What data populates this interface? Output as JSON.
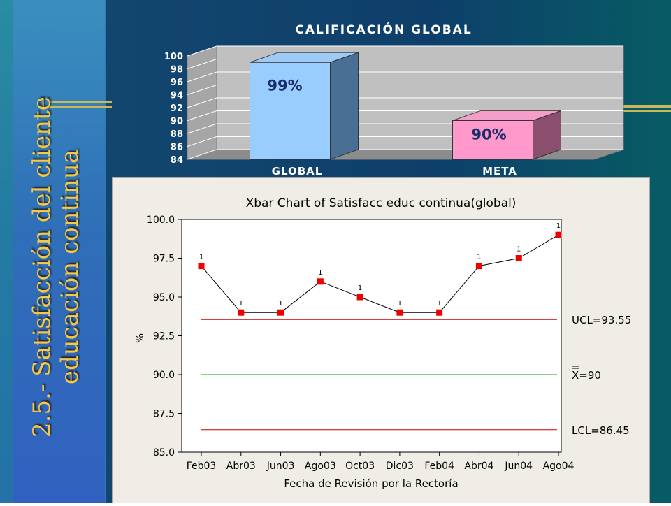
{
  "slide": {
    "title": "2.5.- Satisfacción del cliente\neducación continua"
  },
  "chart_data": [
    {
      "type": "bar",
      "title": "CALIFICACIÓN GLOBAL",
      "categories": [
        "GLOBAL",
        "META"
      ],
      "values": [
        99,
        90
      ],
      "data_labels": [
        "99%",
        "90%"
      ],
      "ylim": [
        84,
        100
      ],
      "yticks": [
        "84",
        "86",
        "88",
        "90",
        "92",
        "94",
        "96",
        "98",
        "100"
      ],
      "colors": [
        "#99ccff",
        "#ff99cc"
      ],
      "style": "3d",
      "grid": true
    },
    {
      "type": "line",
      "title": "Xbar Chart of Satisfacc educ continua(global)",
      "xlabel": "Fecha de Revisión por la Rectoría",
      "ylabel": "%",
      "categories": [
        "Feb03",
        "Abr03",
        "Jun03",
        "Ago03",
        "Oct03",
        "Dic03",
        "Feb04",
        "Abr04",
        "Jun04",
        "Ago04"
      ],
      "values": [
        97,
        94,
        94,
        96,
        95,
        94,
        94,
        97,
        97.5,
        99
      ],
      "point_flags": [
        "1",
        "1",
        "1",
        "1",
        "1",
        "1",
        "1",
        "1",
        "1",
        "1"
      ],
      "ylim": [
        85,
        100
      ],
      "yticks": [
        "85.0",
        "87.5",
        "90.0",
        "92.5",
        "95.0",
        "97.5",
        "100.0"
      ],
      "control_limits": [
        {
          "name": "UCL",
          "value": 93.55,
          "label": "UCL=93.55",
          "color": "#cc0000"
        },
        {
          "name": "center",
          "value": 90,
          "label": "X=90",
          "color": "#00aa00"
        },
        {
          "name": "LCL",
          "value": 86.45,
          "label": "LCL=86.45",
          "color": "#cc0000"
        }
      ],
      "marker_color": "#ee0000",
      "line_color": "#000000"
    }
  ]
}
